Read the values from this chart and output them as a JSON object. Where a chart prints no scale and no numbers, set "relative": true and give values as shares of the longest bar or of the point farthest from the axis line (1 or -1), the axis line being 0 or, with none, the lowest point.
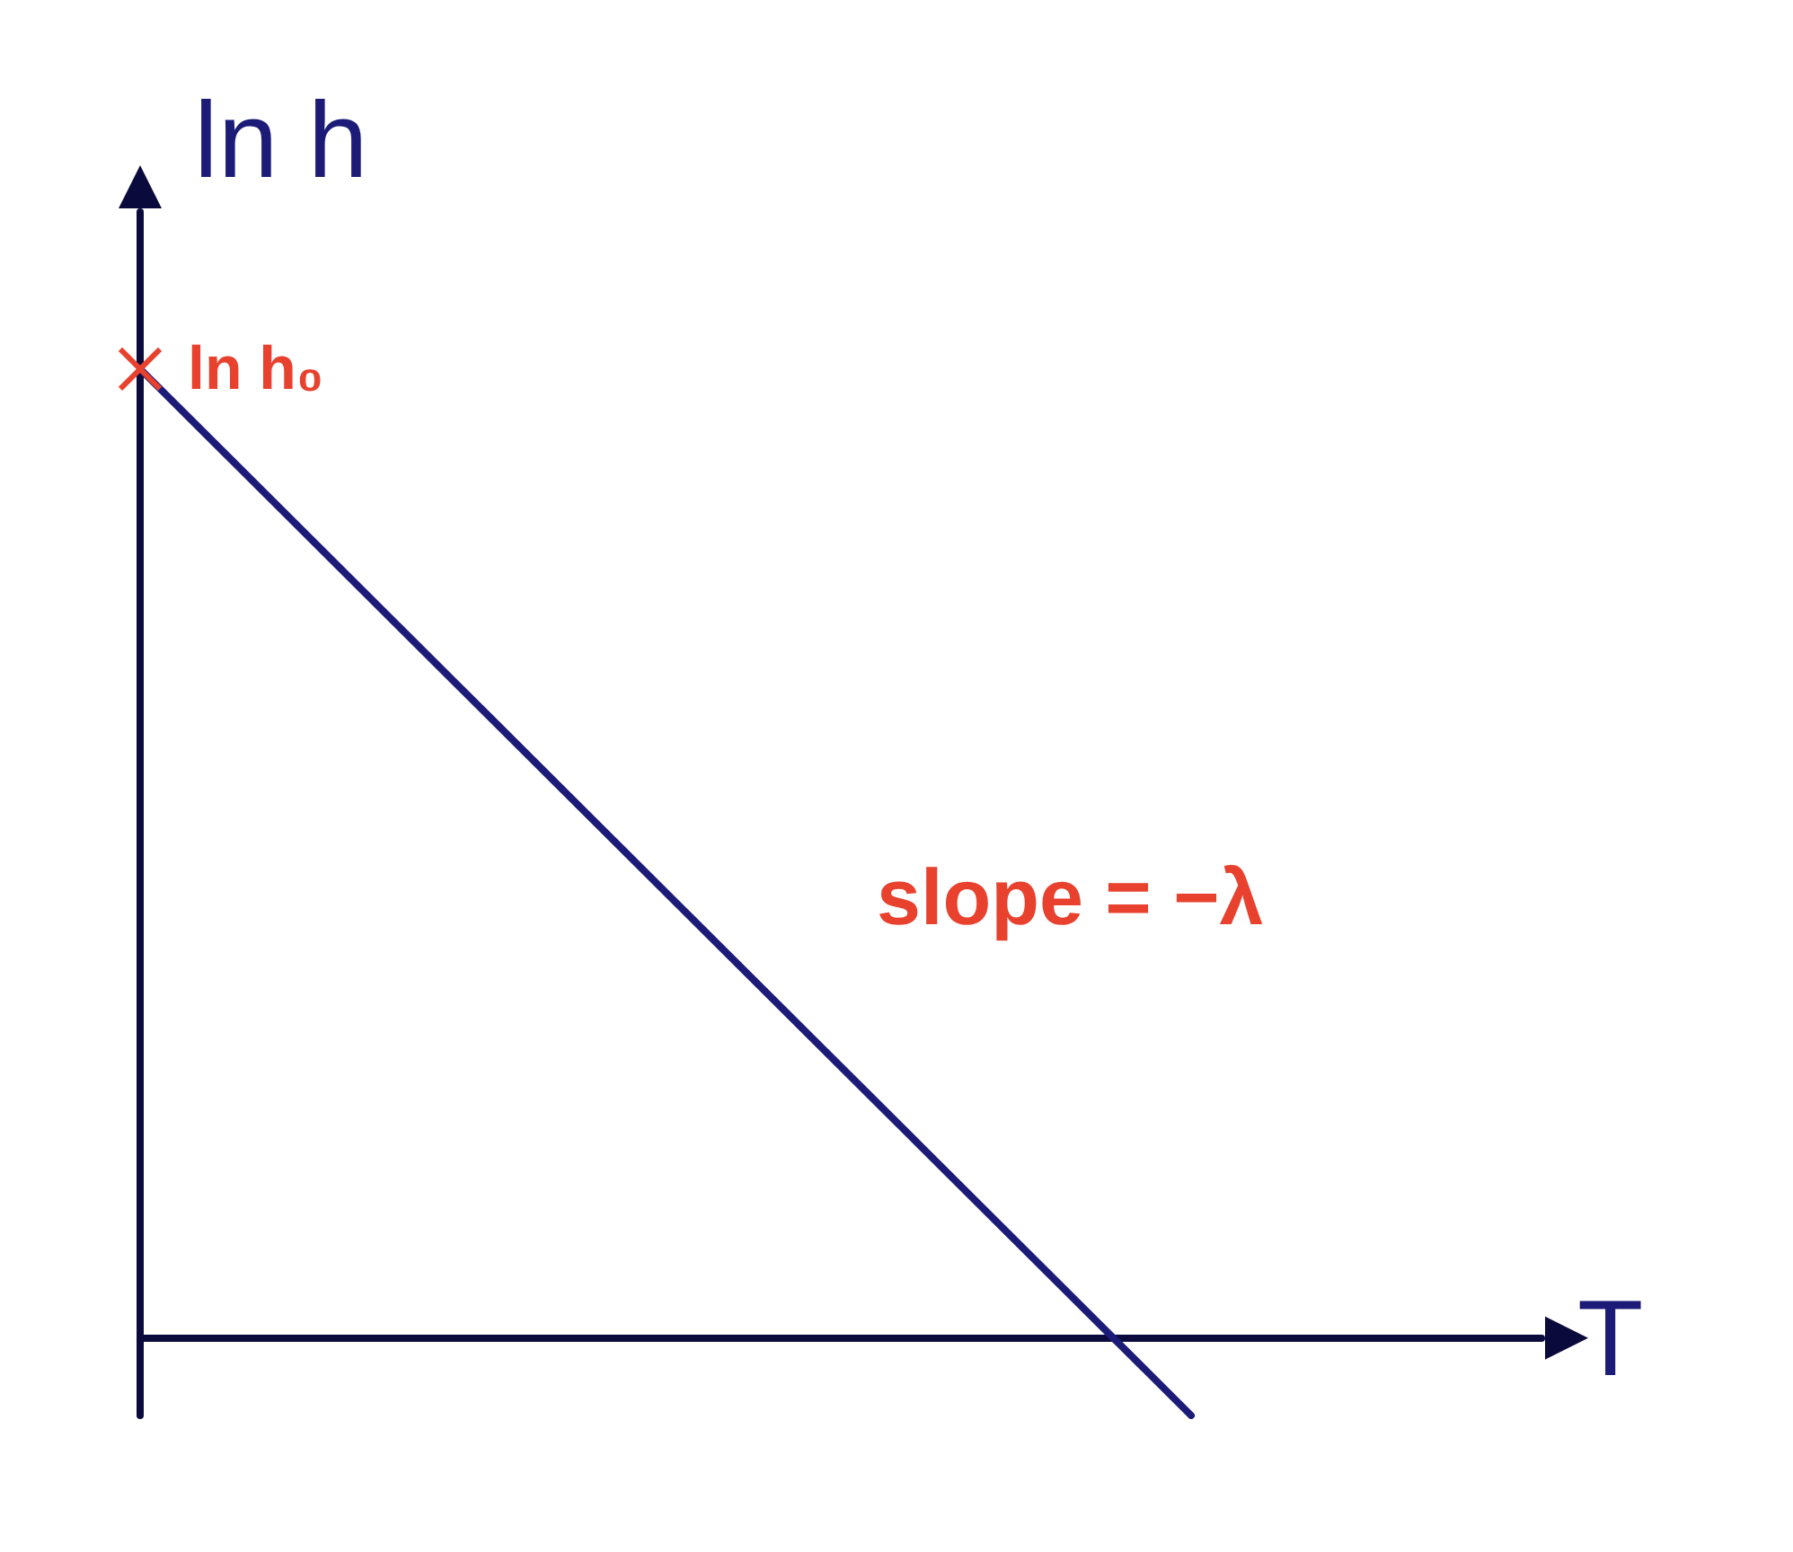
{
  "chart_data": {
    "type": "line",
    "relative": true,
    "xlabel": "T",
    "ylabel": "ln h",
    "categories": [
      null,
      null,
      null,
      null,
      null
    ],
    "series": [
      {
        "color": "#1c1c78",
        "values": [
          1,
          0.64,
          0.28,
          -0.08,
          null
        ]
      }
    ],
    "marker": "none",
    "annotations": [
      "ln h₀",
      "slope = −λ"
    ],
    "grid": false
  }
}
